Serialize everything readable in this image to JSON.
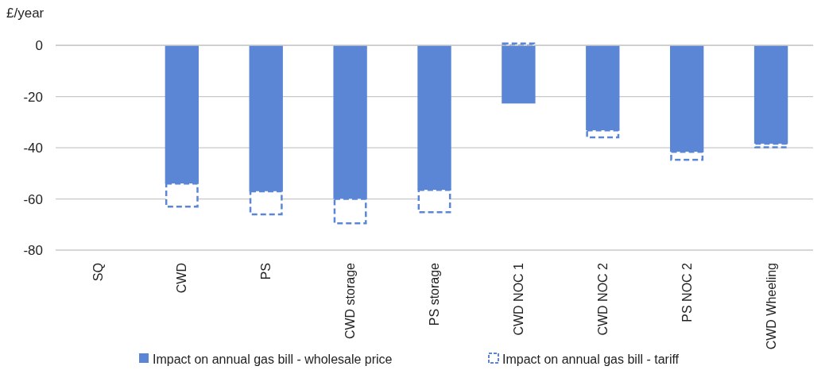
{
  "chart_data": {
    "type": "bar",
    "stacked": true,
    "ylabel": "£/year",
    "categories": [
      "SQ",
      "CWD",
      "PS",
      "CWD storage",
      "PS storage",
      "CWD NOC 1",
      "CWD NOC 2",
      "PS NOC 2",
      "CWD Wheeling"
    ],
    "series": [
      {
        "name": "Impact on annual gas bill - wholesale price",
        "color": "#5b86d6",
        "values": [
          0,
          -54,
          -57,
          -60,
          -56.5,
          -22.7,
          -33.2,
          -41.6,
          -38.4
        ]
      },
      {
        "name": "Impact on annual gas bill - tariff",
        "color": "#5b86d6",
        "line_style": "dashed",
        "values": [
          0,
          -9,
          -9,
          -9.5,
          -8.7,
          0.8,
          -2.7,
          -3.1,
          -1.4
        ]
      }
    ],
    "ylim": [
      -80,
      1
    ],
    "yticks": [
      -80,
      -60,
      -40,
      -20,
      0
    ],
    "grid": "y",
    "legend": "bottom"
  }
}
